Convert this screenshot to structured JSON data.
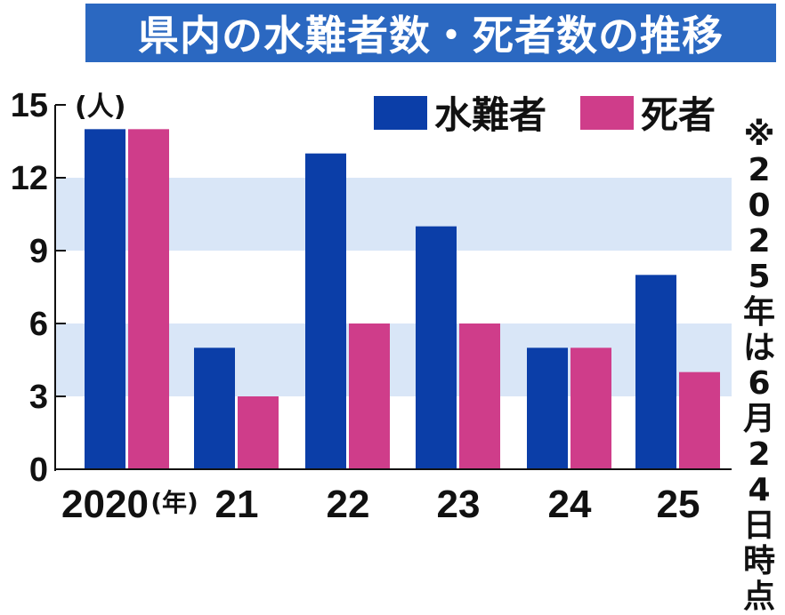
{
  "title": "県内の水難者数・死者数の推移",
  "unit_label": "(人)",
  "year_suffix": "(年)",
  "note": "※2025年は6月24日時点",
  "colors": {
    "title_bg": "#2b68c1",
    "band": "#d9e6f7",
    "axis": "#111111",
    "series_1": "#0b3ea8",
    "series_2": "#cf3d8a"
  },
  "chart_data": {
    "type": "bar",
    "title": "県内の水難者数・死者数の推移",
    "ylabel": "(人)",
    "xlabel": "",
    "categories": [
      "2020",
      "21",
      "22",
      "23",
      "24",
      "25"
    ],
    "yticks": [
      0,
      3,
      6,
      9,
      12,
      15
    ],
    "ylim": [
      0,
      15
    ],
    "legend_position": "top-right",
    "series": [
      {
        "name": "水難者",
        "values": [
          14,
          5,
          13,
          10,
          5,
          8
        ]
      },
      {
        "name": "死者",
        "values": [
          14,
          3,
          6,
          6,
          5,
          4
        ]
      }
    ]
  }
}
